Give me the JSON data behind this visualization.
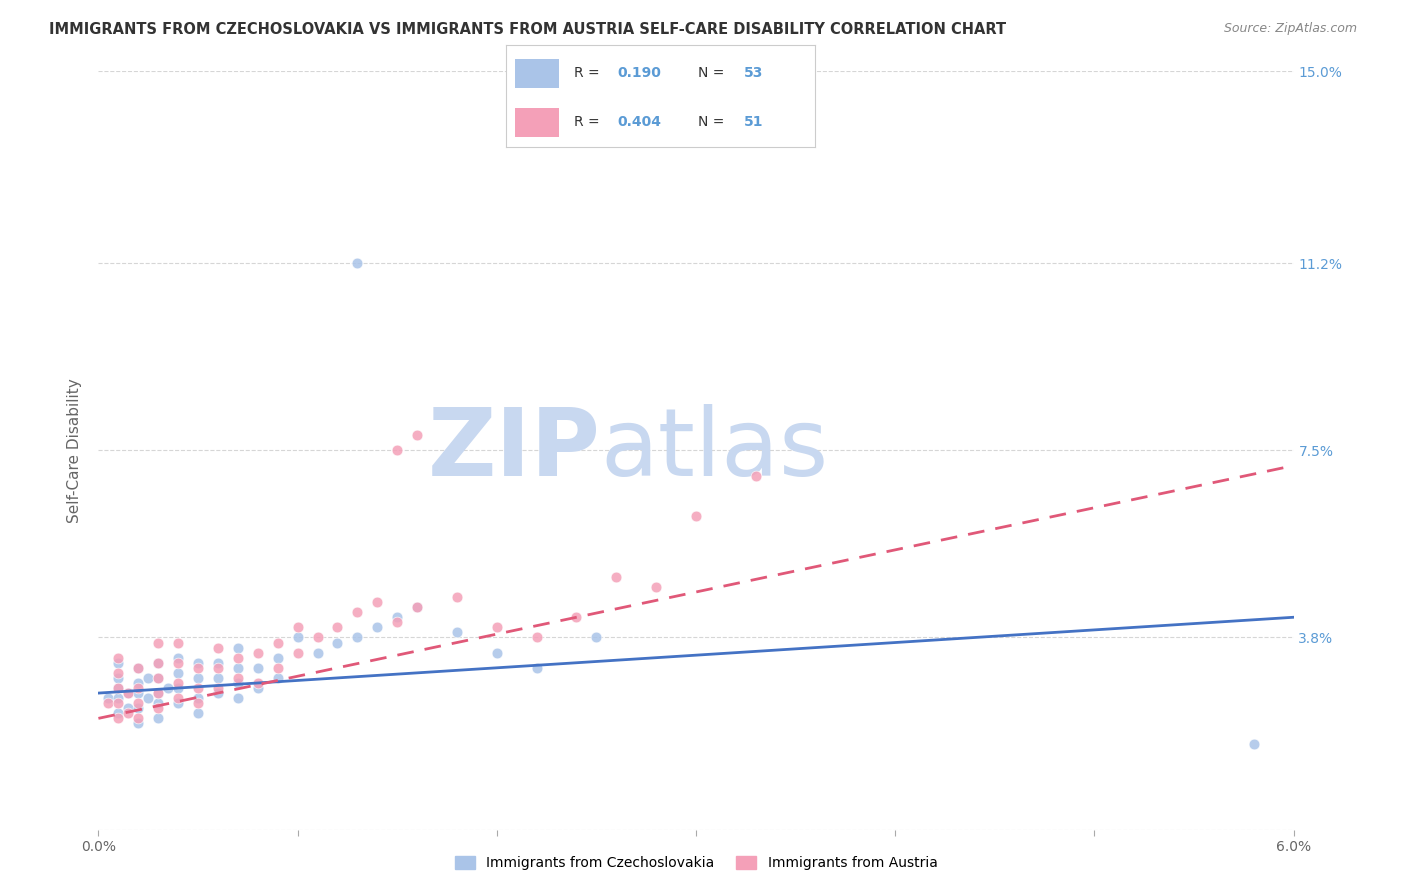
{
  "title": "IMMIGRANTS FROM CZECHOSLOVAKIA VS IMMIGRANTS FROM AUSTRIA SELF-CARE DISABILITY CORRELATION CHART",
  "source": "Source: ZipAtlas.com",
  "ylabel": "Self-Care Disability",
  "xlim": [
    0.0,
    0.06
  ],
  "ylim": [
    0.0,
    0.15
  ],
  "ytick_positions": [
    0.0,
    0.038,
    0.075,
    0.112,
    0.15
  ],
  "ytick_labels": [
    "",
    "3.8%",
    "7.5%",
    "11.2%",
    "15.0%"
  ],
  "right_ytick_color": "#5b9bd5",
  "grid_color": "#cccccc",
  "background_color": "#ffffff",
  "watermark_zip": "ZIP",
  "watermark_atlas": "atlas",
  "watermark_color_zip": "#c8d8f0",
  "watermark_color_atlas": "#c8d8f0",
  "series1_name": "Immigrants from Czechoslovakia",
  "series1_color": "#aac4e8",
  "series1_line_color": "#4472c4",
  "series1_R": 0.19,
  "series1_N": 53,
  "series2_name": "Immigrants from Austria",
  "series2_color": "#f4a0b8",
  "series2_line_color": "#e05878",
  "series2_R": 0.404,
  "series2_N": 51,
  "s1_x": [
    0.0005,
    0.001,
    0.001,
    0.001,
    0.001,
    0.001,
    0.0015,
    0.0015,
    0.002,
    0.002,
    0.002,
    0.002,
    0.002,
    0.0025,
    0.0025,
    0.003,
    0.003,
    0.003,
    0.003,
    0.003,
    0.0035,
    0.004,
    0.004,
    0.004,
    0.004,
    0.005,
    0.005,
    0.005,
    0.005,
    0.006,
    0.006,
    0.006,
    0.007,
    0.007,
    0.007,
    0.007,
    0.008,
    0.008,
    0.009,
    0.009,
    0.01,
    0.011,
    0.012,
    0.013,
    0.014,
    0.015,
    0.016,
    0.018,
    0.02,
    0.022,
    0.025,
    0.058,
    0.013
  ],
  "s1_y": [
    0.026,
    0.023,
    0.026,
    0.028,
    0.03,
    0.033,
    0.024,
    0.027,
    0.021,
    0.024,
    0.027,
    0.029,
    0.032,
    0.026,
    0.03,
    0.022,
    0.025,
    0.027,
    0.03,
    0.033,
    0.028,
    0.025,
    0.028,
    0.031,
    0.034,
    0.023,
    0.026,
    0.03,
    0.033,
    0.027,
    0.03,
    0.033,
    0.026,
    0.029,
    0.032,
    0.036,
    0.028,
    0.032,
    0.03,
    0.034,
    0.038,
    0.035,
    0.037,
    0.038,
    0.04,
    0.042,
    0.044,
    0.039,
    0.035,
    0.032,
    0.038,
    0.017,
    0.112
  ],
  "s2_x": [
    0.0005,
    0.001,
    0.001,
    0.001,
    0.001,
    0.001,
    0.0015,
    0.0015,
    0.002,
    0.002,
    0.002,
    0.002,
    0.003,
    0.003,
    0.003,
    0.003,
    0.003,
    0.004,
    0.004,
    0.004,
    0.004,
    0.005,
    0.005,
    0.005,
    0.006,
    0.006,
    0.006,
    0.007,
    0.007,
    0.008,
    0.008,
    0.009,
    0.009,
    0.01,
    0.01,
    0.011,
    0.012,
    0.013,
    0.014,
    0.015,
    0.016,
    0.018,
    0.02,
    0.022,
    0.024,
    0.026,
    0.028,
    0.03,
    0.033,
    0.015,
    0.016
  ],
  "s2_y": [
    0.025,
    0.022,
    0.025,
    0.028,
    0.031,
    0.034,
    0.023,
    0.027,
    0.022,
    0.025,
    0.028,
    0.032,
    0.024,
    0.027,
    0.03,
    0.033,
    0.037,
    0.026,
    0.029,
    0.033,
    0.037,
    0.025,
    0.028,
    0.032,
    0.028,
    0.032,
    0.036,
    0.03,
    0.034,
    0.029,
    0.035,
    0.032,
    0.037,
    0.035,
    0.04,
    0.038,
    0.04,
    0.043,
    0.045,
    0.041,
    0.044,
    0.046,
    0.04,
    0.038,
    0.042,
    0.05,
    0.048,
    0.062,
    0.07,
    0.075,
    0.078
  ],
  "line1_x": [
    0.0,
    0.06
  ],
  "line1_y": [
    0.027,
    0.042
  ],
  "line2_x": [
    0.0,
    0.06
  ],
  "line2_y": [
    0.022,
    0.072
  ]
}
